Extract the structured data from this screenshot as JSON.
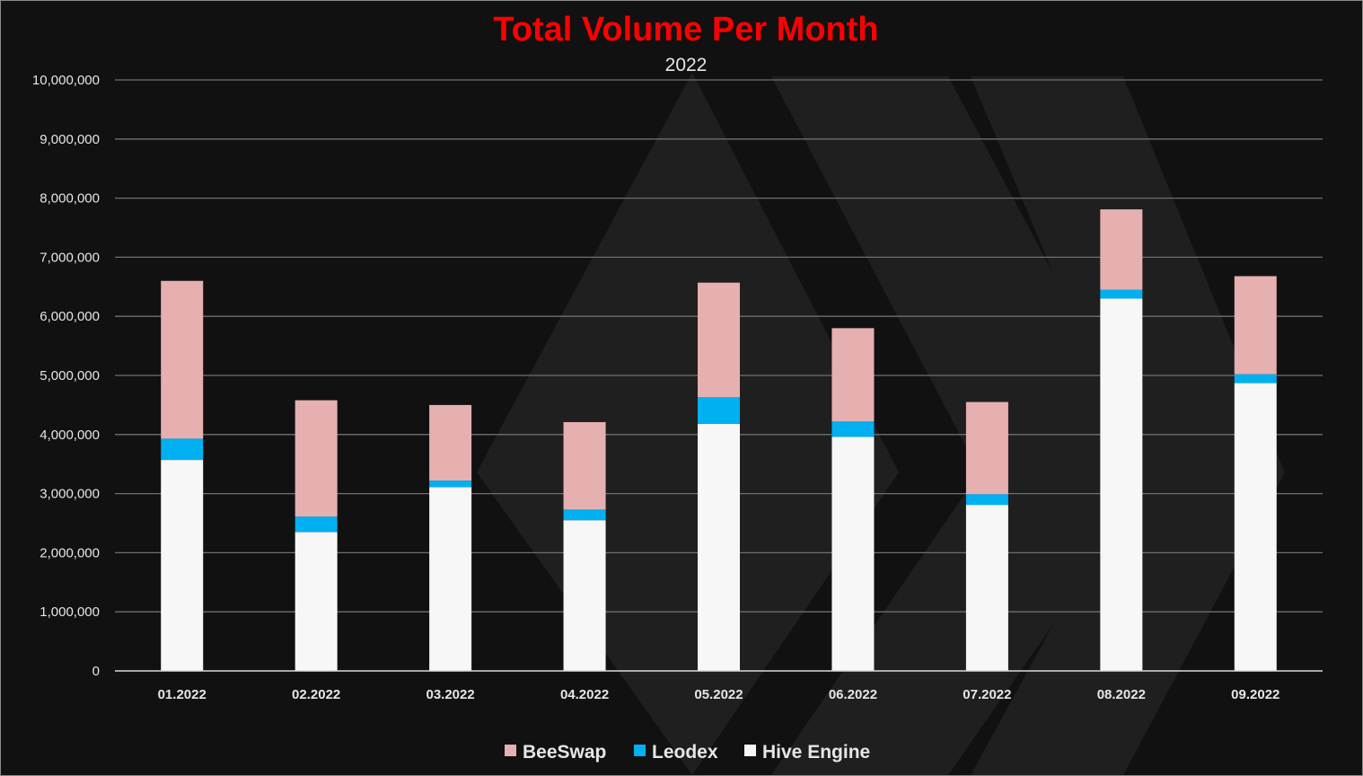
{
  "colors": {
    "background": "#111111",
    "title": "#FF0000",
    "text": "#E6E6E6",
    "watermark": "#1f1f1f"
  },
  "chart_data": {
    "type": "bar",
    "stacked": true,
    "title": "Total Volume Per Month",
    "subtitle": "2022",
    "xlabel": "",
    "ylabel": "",
    "ylim": [
      0,
      10000000
    ],
    "yticks": [
      0,
      1000000,
      2000000,
      3000000,
      4000000,
      5000000,
      6000000,
      7000000,
      8000000,
      9000000,
      10000000
    ],
    "ytick_labels": [
      "0",
      "1,000,000",
      "2,000,000",
      "3,000,000",
      "4,000,000",
      "5,000,000",
      "6,000,000",
      "7,000,000",
      "8,000,000",
      "9,000,000",
      "10,000,000"
    ],
    "grid": true,
    "legend_position": "bottom",
    "categories": [
      "01.2022",
      "02.2022",
      "03.2022",
      "04.2022",
      "05.2022",
      "06.2022",
      "07.2022",
      "08.2022",
      "09.2022"
    ],
    "series": [
      {
        "name": "Hive Engine",
        "color": "#F7F7F7",
        "values": [
          3570000,
          2350000,
          3110000,
          2550000,
          4180000,
          3960000,
          2810000,
          6300000,
          4870000
        ]
      },
      {
        "name": "Leodex",
        "color": "#00B0F0",
        "values": [
          360000,
          260000,
          110000,
          180000,
          450000,
          260000,
          180000,
          150000,
          150000
        ]
      },
      {
        "name": "BeeSwap",
        "color": "#E6B0B0",
        "values": [
          2670000,
          1970000,
          1280000,
          1480000,
          1940000,
          1580000,
          1560000,
          1360000,
          1660000
        ]
      }
    ],
    "legend_order": [
      "BeeSwap",
      "Leodex",
      "Hive Engine"
    ]
  }
}
